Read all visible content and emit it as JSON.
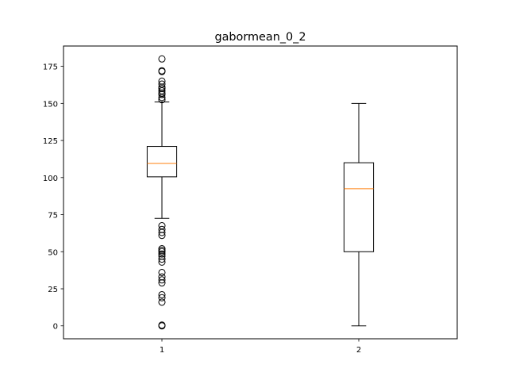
{
  "chart_data": {
    "type": "box",
    "title": "gabormean_0_2",
    "xlabel": "",
    "ylabel": "",
    "ylim": [
      -8.7,
      188.7
    ],
    "yticks": [
      0,
      25,
      50,
      75,
      100,
      125,
      150,
      175
    ],
    "categories": [
      "1",
      "2"
    ],
    "boxes": [
      {
        "label": "1",
        "whisker_low": 72.5,
        "q1": 100.5,
        "median": 109.5,
        "q3": 121,
        "whisker_high": 151,
        "outliers": [
          180,
          172,
          171.5,
          165,
          163,
          161,
          160,
          158.5,
          157,
          156,
          154,
          152.5,
          67.5,
          65,
          63,
          61,
          52,
          51,
          50,
          48.5,
          47,
          45,
          43,
          36,
          33,
          31,
          29,
          21,
          19,
          16,
          0.5,
          0
        ]
      },
      {
        "label": "2",
        "whisker_low": 0,
        "q1": 50,
        "median": 92.5,
        "q3": 110,
        "whisker_high": 150,
        "outliers": []
      }
    ],
    "colors": {
      "box": "#000000",
      "median": "#ff7f0e",
      "flier": "#000000"
    },
    "grid": false,
    "legend": "none"
  }
}
